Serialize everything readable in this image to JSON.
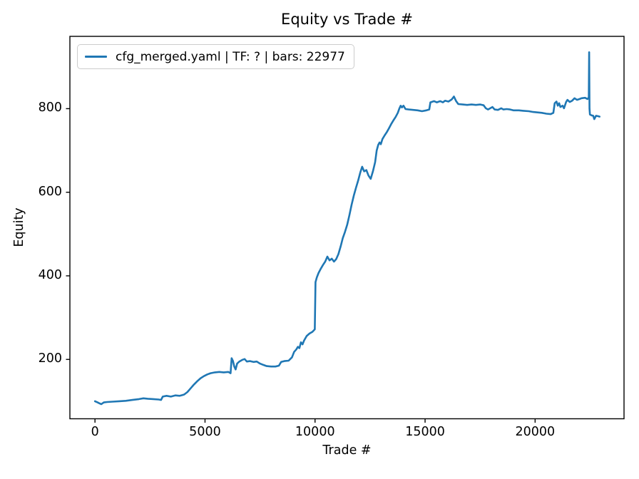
{
  "chart_data": {
    "type": "line",
    "title": "Equity vs Trade #",
    "xlabel": "Trade #",
    "ylabel": "Equity",
    "legend_position": "upper left",
    "line_color": "#1f77b4",
    "grid": false,
    "xlim": [
      -1140,
      24040
    ],
    "ylim": [
      58,
      973
    ],
    "x_ticks": [
      0,
      5000,
      10000,
      15000,
      20000
    ],
    "y_ticks": [
      200,
      400,
      600,
      800
    ],
    "series": [
      {
        "name": "cfg_merged.yaml | TF: ? | bars: 22977",
        "points": [
          [
            0,
            100
          ],
          [
            120,
            97
          ],
          [
            200,
            95
          ],
          [
            290,
            93
          ],
          [
            400,
            97
          ],
          [
            550,
            98
          ],
          [
            800,
            99
          ],
          [
            1100,
            100
          ],
          [
            1400,
            101
          ],
          [
            1700,
            103
          ],
          [
            2000,
            105
          ],
          [
            2200,
            107
          ],
          [
            2400,
            106
          ],
          [
            2650,
            105
          ],
          [
            2900,
            104
          ],
          [
            3000,
            103
          ],
          [
            3080,
            111
          ],
          [
            3250,
            113
          ],
          [
            3450,
            111
          ],
          [
            3650,
            114
          ],
          [
            3850,
            113
          ],
          [
            4050,
            116
          ],
          [
            4200,
            122
          ],
          [
            4350,
            131
          ],
          [
            4500,
            140
          ],
          [
            4650,
            148
          ],
          [
            4800,
            155
          ],
          [
            4950,
            160
          ],
          [
            5100,
            164
          ],
          [
            5250,
            167
          ],
          [
            5450,
            169
          ],
          [
            5650,
            170
          ],
          [
            5850,
            169
          ],
          [
            6060,
            170
          ],
          [
            6160,
            167
          ],
          [
            6210,
            203
          ],
          [
            6270,
            196
          ],
          [
            6330,
            183
          ],
          [
            6390,
            176
          ],
          [
            6460,
            190
          ],
          [
            6560,
            195
          ],
          [
            6700,
            199
          ],
          [
            6800,
            201
          ],
          [
            6900,
            195
          ],
          [
            7050,
            196
          ],
          [
            7200,
            194
          ],
          [
            7350,
            195
          ],
          [
            7500,
            190
          ],
          [
            7650,
            187
          ],
          [
            7800,
            184
          ],
          [
            8000,
            183
          ],
          [
            8200,
            183
          ],
          [
            8360,
            185
          ],
          [
            8460,
            194
          ],
          [
            8600,
            196
          ],
          [
            8800,
            197
          ],
          [
            8950,
            205
          ],
          [
            9050,
            218
          ],
          [
            9150,
            224
          ],
          [
            9220,
            230
          ],
          [
            9290,
            227
          ],
          [
            9360,
            241
          ],
          [
            9430,
            236
          ],
          [
            9500,
            245
          ],
          [
            9620,
            256
          ],
          [
            9750,
            262
          ],
          [
            9880,
            266
          ],
          [
            9990,
            272
          ],
          [
            10020,
            385
          ],
          [
            10080,
            396
          ],
          [
            10160,
            407
          ],
          [
            10260,
            417
          ],
          [
            10360,
            426
          ],
          [
            10460,
            434
          ],
          [
            10560,
            446
          ],
          [
            10660,
            437
          ],
          [
            10760,
            441
          ],
          [
            10860,
            434
          ],
          [
            10960,
            440
          ],
          [
            11060,
            452
          ],
          [
            11160,
            470
          ],
          [
            11260,
            490
          ],
          [
            11360,
            505
          ],
          [
            11460,
            522
          ],
          [
            11560,
            545
          ],
          [
            11660,
            570
          ],
          [
            11760,
            592
          ],
          [
            11860,
            611
          ],
          [
            11960,
            628
          ],
          [
            12060,
            648
          ],
          [
            12140,
            661
          ],
          [
            12230,
            650
          ],
          [
            12330,
            653
          ],
          [
            12430,
            640
          ],
          [
            12530,
            632
          ],
          [
            12630,
            650
          ],
          [
            12730,
            672
          ],
          [
            12800,
            700
          ],
          [
            12870,
            713
          ],
          [
            12930,
            719
          ],
          [
            12990,
            715
          ],
          [
            13060,
            727
          ],
          [
            13160,
            736
          ],
          [
            13260,
            744
          ],
          [
            13360,
            753
          ],
          [
            13460,
            763
          ],
          [
            13560,
            772
          ],
          [
            13660,
            780
          ],
          [
            13760,
            790
          ],
          [
            13830,
            800
          ],
          [
            13890,
            807
          ],
          [
            13950,
            803
          ],
          [
            14020,
            807
          ],
          [
            14110,
            799
          ],
          [
            14260,
            798
          ],
          [
            14460,
            797
          ],
          [
            14660,
            796
          ],
          [
            14860,
            794
          ],
          [
            15060,
            796
          ],
          [
            15190,
            798
          ],
          [
            15240,
            815
          ],
          [
            15410,
            818
          ],
          [
            15530,
            815
          ],
          [
            15690,
            818
          ],
          [
            15810,
            815
          ],
          [
            15910,
            819
          ],
          [
            16060,
            817
          ],
          [
            16210,
            822
          ],
          [
            16310,
            829
          ],
          [
            16410,
            818
          ],
          [
            16510,
            811
          ],
          [
            16710,
            810
          ],
          [
            16910,
            809
          ],
          [
            17110,
            810
          ],
          [
            17310,
            809
          ],
          [
            17510,
            810
          ],
          [
            17660,
            808
          ],
          [
            17760,
            801
          ],
          [
            17860,
            798
          ],
          [
            17960,
            801
          ],
          [
            18060,
            804
          ],
          [
            18160,
            798
          ],
          [
            18310,
            797
          ],
          [
            18460,
            801
          ],
          [
            18560,
            798
          ],
          [
            18710,
            799
          ],
          [
            18860,
            798
          ],
          [
            19010,
            796
          ],
          [
            19260,
            796
          ],
          [
            19460,
            795
          ],
          [
            19710,
            794
          ],
          [
            19910,
            792
          ],
          [
            20110,
            791
          ],
          [
            20310,
            790
          ],
          [
            20510,
            788
          ],
          [
            20710,
            787
          ],
          [
            20830,
            790
          ],
          [
            20890,
            813
          ],
          [
            20970,
            817
          ],
          [
            21030,
            807
          ],
          [
            21090,
            813
          ],
          [
            21150,
            804
          ],
          [
            21250,
            807
          ],
          [
            21310,
            801
          ],
          [
            21410,
            816
          ],
          [
            21470,
            821
          ],
          [
            21570,
            816
          ],
          [
            21680,
            819
          ],
          [
            21790,
            825
          ],
          [
            21900,
            821
          ],
          [
            22010,
            823
          ],
          [
            22110,
            825
          ],
          [
            22270,
            826
          ],
          [
            22380,
            823
          ],
          [
            22440,
            827
          ],
          [
            22455,
            935
          ],
          [
            22470,
            800
          ],
          [
            22490,
            786
          ],
          [
            22560,
            784
          ],
          [
            22640,
            783
          ],
          [
            22690,
            775
          ],
          [
            22770,
            783
          ],
          [
            22860,
            782
          ],
          [
            22930,
            781
          ]
        ]
      }
    ]
  }
}
